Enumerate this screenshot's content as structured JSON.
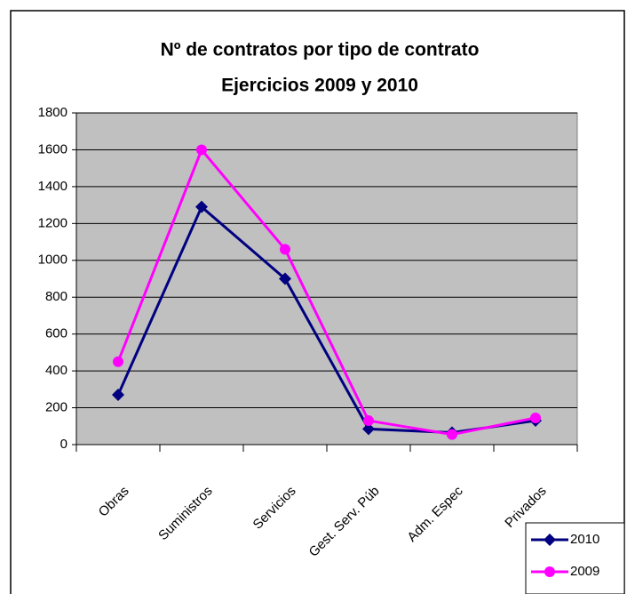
{
  "chart_data": {
    "type": "line",
    "title": "Nº de contratos por tipo de contrato",
    "subtitle": "Ejercicios 2009 y 2010",
    "categories": [
      "Obras",
      "Suministros",
      "Servicios",
      "Gest. Serv. Púb",
      "Adm. Espec",
      "Privados"
    ],
    "series": [
      {
        "name": "2010",
        "color": "#000080",
        "marker": "diamond",
        "values": [
          270,
          1290,
          900,
          85,
          65,
          130
        ]
      },
      {
        "name": "2009",
        "color": "#ff00ff",
        "marker": "circle",
        "values": [
          450,
          1600,
          1060,
          130,
          55,
          145
        ]
      }
    ],
    "ylim": [
      0,
      1800
    ],
    "yticks": [
      0,
      200,
      400,
      600,
      800,
      1000,
      1200,
      1400,
      1600,
      1800
    ],
    "grid": true,
    "legend": "bottom-right"
  }
}
